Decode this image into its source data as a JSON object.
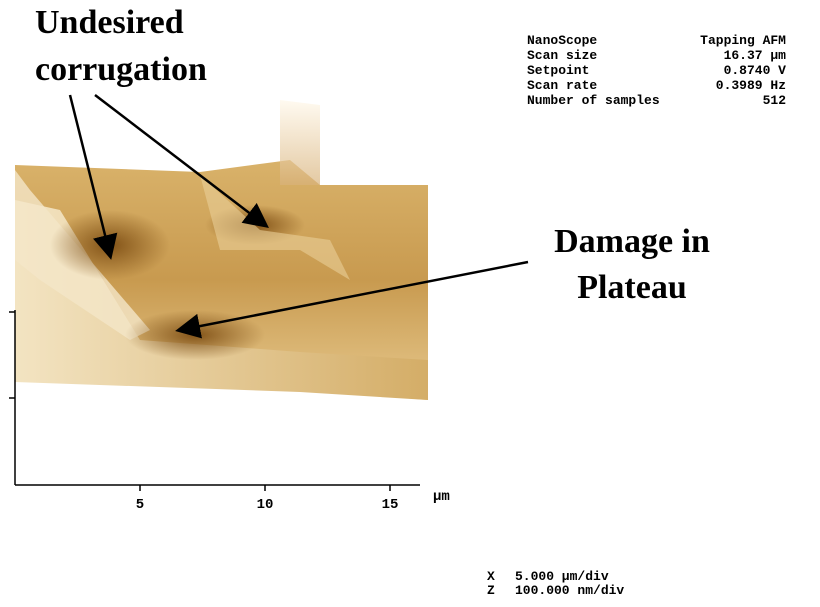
{
  "annotations": {
    "corrugation": [
      "Undesired",
      "corrugation"
    ],
    "damage": [
      "Damage in",
      "Plateau"
    ]
  },
  "scan_info": [
    [
      "NanoScope",
      "Tapping AFM"
    ],
    [
      "Scan size",
      "16.37 μm"
    ],
    [
      "Setpoint",
      "0.8740 V"
    ],
    [
      "Scan rate",
      "0.3989 Hz"
    ],
    [
      "Number of samples",
      "512"
    ]
  ],
  "x_axis": {
    "ticks": [
      5,
      10,
      15
    ],
    "unit": "μm"
  },
  "scale": [
    [
      "X",
      "5.000 μm/div"
    ],
    [
      "Z",
      "100.000 nm/div"
    ]
  ]
}
